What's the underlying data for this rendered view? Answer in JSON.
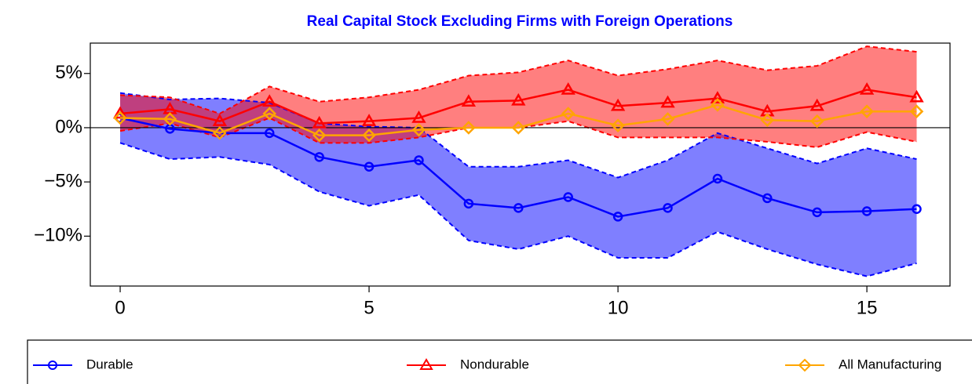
{
  "chart_data": {
    "type": "line",
    "title": "Real Capital Stock Excluding Firms with Foreign Operations",
    "x": [
      0,
      1,
      2,
      3,
      4,
      5,
      6,
      7,
      8,
      9,
      10,
      11,
      12,
      13,
      14,
      15,
      16
    ],
    "xlim": [
      -0.6,
      16.67
    ],
    "xticks": [
      0,
      5,
      10,
      15
    ],
    "ylim": [
      -14.6,
      7.8
    ],
    "yticks": [
      {
        "value": 5,
        "label": "5%"
      },
      {
        "value": 0,
        "label": "0%"
      },
      {
        "value": -5,
        "label": "−5%"
      },
      {
        "value": -10,
        "label": "−10%"
      }
    ],
    "hline": 0,
    "series": [
      {
        "name": "Durable",
        "color": "#0000ff",
        "marker": "circle",
        "values": [
          0.9,
          -0.1,
          -0.5,
          -0.5,
          -2.7,
          -3.6,
          -3.0,
          -7.0,
          -7.4,
          -6.4,
          -8.2,
          -7.4,
          -4.7,
          -6.5,
          -7.8,
          -7.7,
          -7.5
        ],
        "upper": [
          3.2,
          2.6,
          2.7,
          2.3,
          0.4,
          0.1,
          0.0,
          -3.6,
          -3.6,
          -3.0,
          -4.6,
          -3.0,
          -0.5,
          -1.9,
          -3.3,
          -1.9,
          -2.9
        ],
        "lower": [
          -1.4,
          -2.9,
          -2.7,
          -3.4,
          -5.9,
          -7.2,
          -6.2,
          -10.4,
          -11.2,
          -10.0,
          -12.0,
          -12.0,
          -9.6,
          -11.2,
          -12.6,
          -13.7,
          -12.5
        ]
      },
      {
        "name": "Nondurable",
        "color": "#ff0000",
        "marker": "triangle",
        "values": [
          1.3,
          1.7,
          0.6,
          2.4,
          0.4,
          0.6,
          0.9,
          2.4,
          2.5,
          3.5,
          2.0,
          2.3,
          2.7,
          1.5,
          2.0,
          3.5,
          2.8
        ],
        "upper": [
          3.0,
          2.8,
          1.3,
          3.8,
          2.4,
          2.8,
          3.5,
          4.8,
          5.1,
          6.2,
          4.8,
          5.4,
          6.2,
          5.3,
          5.7,
          7.5,
          7.0
        ],
        "lower": [
          -0.3,
          0.4,
          -0.9,
          0.9,
          -1.4,
          -1.4,
          -0.9,
          0.0,
          0.0,
          0.6,
          -0.9,
          -0.9,
          -0.9,
          -1.3,
          -1.8,
          -0.4,
          -1.3
        ]
      },
      {
        "name": "All Manufacturing",
        "color": "#ffa500",
        "marker": "diamond",
        "values": [
          0.9,
          0.8,
          -0.5,
          1.3,
          -0.7,
          -0.7,
          -0.2,
          0.0,
          0.0,
          1.3,
          0.2,
          0.8,
          2.1,
          0.7,
          0.6,
          1.5,
          1.5
        ]
      }
    ]
  }
}
